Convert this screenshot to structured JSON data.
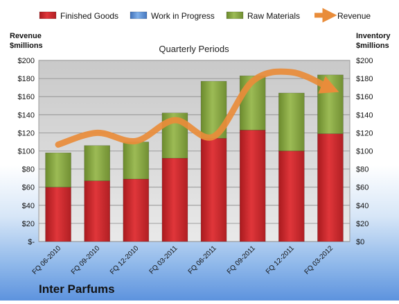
{
  "chart_data": {
    "type": "bar",
    "title": "Quarterly Periods",
    "company": "Inter Parfums",
    "categories": [
      "FQ 06-2010",
      "FQ 09-2010",
      "FQ 12-2010",
      "FQ 03-2011",
      "FQ 06-2011",
      "FQ 09-2011",
      "FQ 12-2011",
      "FQ 03-2012"
    ],
    "stacked": true,
    "series": [
      {
        "name": "Finished Goods",
        "color": "#c0282c",
        "values": [
          60,
          67,
          69,
          92,
          114,
          123,
          100,
          119
        ]
      },
      {
        "name": "Work in Progress",
        "color": "#5b8fd0",
        "values": [
          0,
          0,
          0,
          0,
          0,
          0,
          0,
          0
        ]
      },
      {
        "name": "Raw Materials",
        "color": "#7f9e3a",
        "values": [
          38,
          39,
          41,
          50,
          63,
          60,
          64,
          65
        ]
      }
    ],
    "line_series": {
      "name": "Revenue",
      "color": "#e98c3a",
      "values": [
        107,
        120,
        111,
        134,
        116,
        177,
        187,
        169
      ]
    },
    "ylabel_left": "Revenue\n$millions",
    "ylabel_right": "Inventory\n$millions",
    "ylim": [
      0,
      200
    ],
    "yticks": [
      0,
      20,
      40,
      60,
      80,
      100,
      120,
      140,
      160,
      180,
      200
    ],
    "ytick_labels_left": [
      "$-",
      "$20",
      "$40",
      "$60",
      "$80",
      "$100",
      "$120",
      "$140",
      "$160",
      "$180",
      "$200"
    ],
    "ytick_labels_right": [
      "$0",
      "$20",
      "$40",
      "$60",
      "$80",
      "$100",
      "$120",
      "$140",
      "$160",
      "$180",
      "$200"
    ],
    "grid": true,
    "legend_position": "top"
  }
}
